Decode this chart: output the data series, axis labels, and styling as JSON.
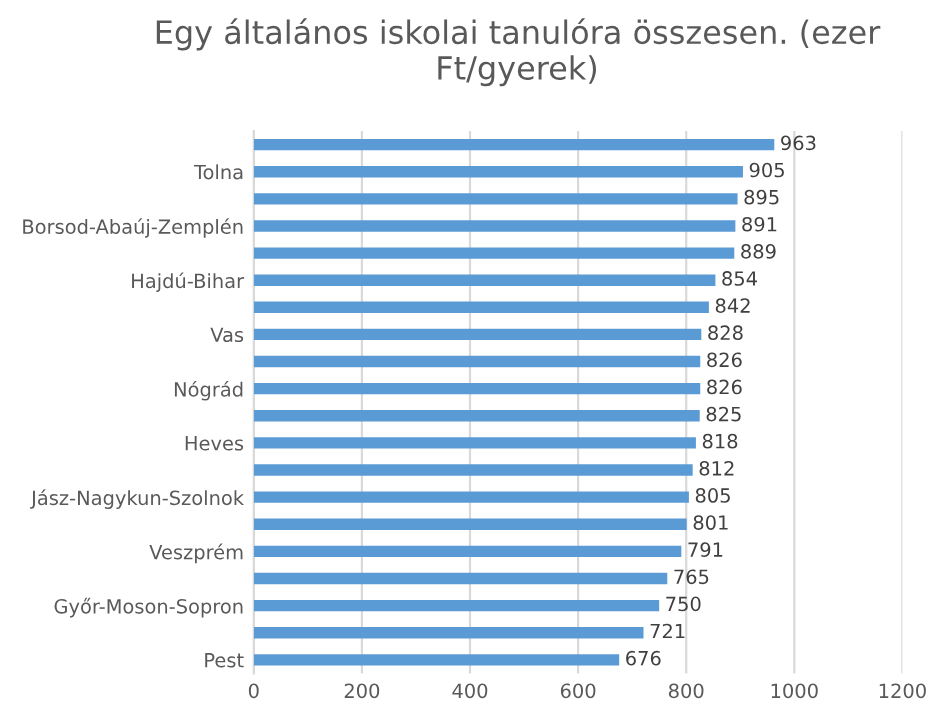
{
  "chart_data": {
    "type": "bar",
    "orientation": "horizontal",
    "title": "Egy általános iskolai tanulóra összesen. (ezer Ft/gyerek)",
    "categories": [
      null,
      "Tolna",
      null,
      "Borsod-Abaúj-Zemplén",
      null,
      "Hajdú-Bihar",
      null,
      "Vas",
      null,
      "Nógrád",
      null,
      "Heves",
      null,
      "Jász-Nagykun-Szolnok",
      null,
      "Veszprém",
      null,
      "Győr-Moson-Sopron",
      null,
      "Pest"
    ],
    "values": [
      963,
      905,
      895,
      891,
      889,
      854,
      842,
      828,
      826,
      826,
      825,
      818,
      812,
      805,
      801,
      791,
      765,
      750,
      721,
      676
    ],
    "color": "#5b9bd5",
    "xlim": [
      0,
      1200
    ],
    "xticks": [
      0,
      200,
      400,
      600,
      800,
      1000,
      1200
    ],
    "grid": "x",
    "data_labels": true,
    "legend": false
  }
}
